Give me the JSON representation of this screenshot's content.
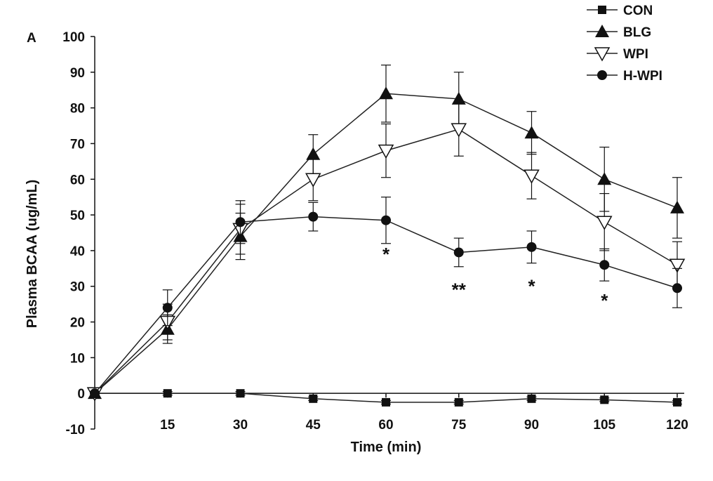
{
  "chart_data": {
    "type": "line",
    "panel_label": "A",
    "title": "",
    "xlabel": "Time (min)",
    "ylabel": "Plasma BCAA (ug/mL)",
    "xlim": [
      0,
      120
    ],
    "ylim": [
      -10,
      100
    ],
    "x": [
      0,
      15,
      30,
      45,
      60,
      75,
      90,
      105,
      120
    ],
    "x_tick_labels": [
      "15",
      "30",
      "45",
      "60",
      "75",
      "90",
      "105",
      "120"
    ],
    "y_ticks": [
      -10,
      0,
      10,
      20,
      30,
      40,
      50,
      60,
      70,
      80,
      90,
      100
    ],
    "grid": false,
    "legend_position": "top-right",
    "series": [
      {
        "name": "CON",
        "marker": "square",
        "values": [
          0,
          0,
          0,
          -1.5,
          -2.5,
          -2.5,
          -1.5,
          -1.8,
          -2.5
        ],
        "errors": [
          0,
          0.5,
          0.5,
          0.5,
          0.5,
          0.5,
          0.5,
          0.5,
          0.5
        ]
      },
      {
        "name": "BLG",
        "marker": "triangle-up",
        "values": [
          0,
          18,
          44,
          67,
          84,
          82.5,
          73,
          60,
          52
        ],
        "errors": [
          0,
          4,
          6.5,
          5.5,
          8,
          7.5,
          6,
          9,
          8.5
        ]
      },
      {
        "name": "WPI",
        "marker": "triangle-down-open",
        "values": [
          0,
          20,
          46,
          60,
          68,
          74,
          61,
          48,
          36
        ],
        "errors": [
          0,
          5,
          7,
          6,
          7.5,
          7.5,
          6.5,
          8,
          6.5
        ]
      },
      {
        "name": "H-WPI",
        "marker": "circle",
        "values": [
          0,
          24,
          48,
          49.5,
          48.5,
          39.5,
          41,
          36,
          29.5
        ],
        "errors": [
          0,
          5,
          6,
          4,
          6.5,
          4,
          4.5,
          4.5,
          5.5
        ]
      }
    ],
    "annotations": [
      {
        "x": 60,
        "y": 40,
        "text": "*"
      },
      {
        "x": 75,
        "y": 30,
        "text": "**"
      },
      {
        "x": 90,
        "y": 31,
        "text": "*"
      },
      {
        "x": 105,
        "y": 27,
        "text": "*"
      }
    ]
  }
}
